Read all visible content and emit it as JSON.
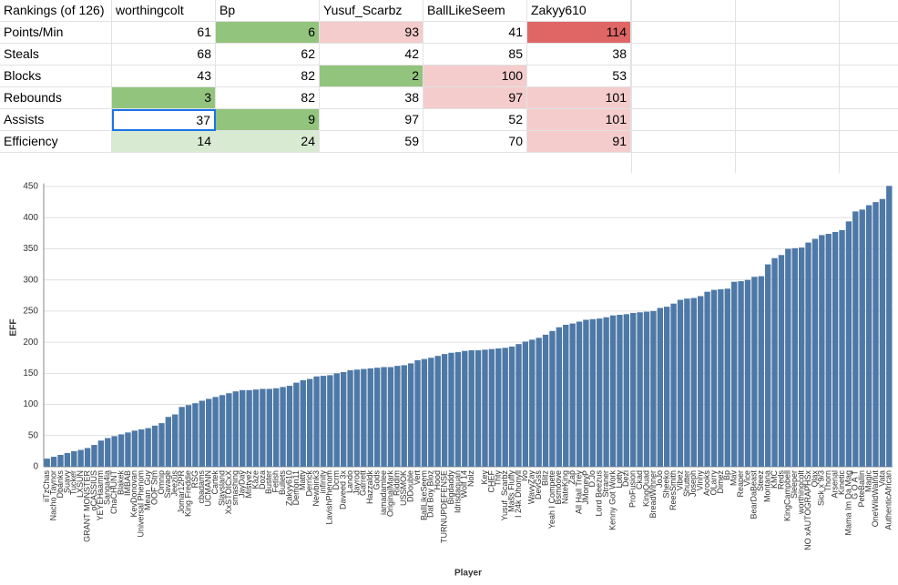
{
  "table": {
    "header": [
      "Rankings (of 126)",
      "worthingcolt",
      "Bp",
      "Yusuf_Scarbz",
      "BallLikeSeem",
      "Zakyy610"
    ],
    "rows": [
      [
        "Points/Min",
        61,
        6,
        93,
        41,
        114
      ],
      [
        "Steals",
        68,
        62,
        42,
        85,
        38
      ],
      [
        "Blocks",
        43,
        82,
        2,
        100,
        53
      ],
      [
        "Rebounds",
        3,
        82,
        38,
        97,
        101
      ],
      [
        "Assists",
        37,
        9,
        97,
        52,
        101
      ],
      [
        "Efficiency",
        14,
        24,
        59,
        70,
        91
      ]
    ]
  },
  "chart_data": {
    "type": "bar",
    "y_label": "EFF",
    "x_label": "Player",
    "color": "#4e79a7",
    "grid": true,
    "ylim": [
      0,
      455
    ],
    "yticks": [
      0,
      50,
      100,
      150,
      200,
      250,
      300,
      350,
      400,
      450
    ],
    "categories": [
      "iiTzChas",
      "Nacho Taynor",
      "Dbanks",
      "Suavy",
      "Tucker",
      "LXSUN",
      "GRANT MONSTER",
      "oCASSIUS",
      "YEYEHaamm",
      "Sanga4ia",
      "ChaCHUNT",
      "Blakek",
      "IMBAB",
      "KevDonovan",
      "Universal Phenom",
      "Mean_Guy",
      "OOF Stm",
      "Omnip",
      "Savage",
      "Jeezus",
      "Jomar12PR",
      "King Freddie",
      "RSG",
      "cbadams",
      "UCMANN",
      "Cartek",
      "Slaysland",
      "XxSTOICxX",
      "smashing",
      "JayDay",
      "Mistyez",
      "Kaze",
      "Doza",
      "Buster",
      "Fetish",
      "Bullets",
      "Zakyy610",
      "Demon11",
      "Matty",
      "Derrick",
      "Newbink3",
      "infinity",
      "LavishPhenom",
      "Dcrm",
      "Daveed 3x",
      "Lando",
      "Jayrod",
      "Garrett",
      "Hazzaldk",
      "Gods",
      "iamadamlee",
      "OriginalMark",
      "Riddim",
      "USSMOK",
      "DDouble",
      "Vert",
      "BallLikeSeem",
      "Dat Boy Bloz",
      "Hood",
      "TURNUPDEFENSE",
      "Bigdaddy",
      "Idrisdaquan",
      "Wolf 14",
      "Nolz",
      null,
      "Key",
      "CHEF",
      "Thty",
      "Yusuf_Scarbz",
      "Mass Fluffy",
      "I 24k Dhonyll",
      "Ivo",
      "WavyZay",
      "DevGss",
      "Blitz",
      "Yeah I Compete",
      "Bsmoove",
      "NateKing",
      "Zap",
      "All Hail Trey",
      "JMoneyP",
      "D.Jo",
      "Lord Beezus",
      "Straner",
      "Kenny Got Work",
      "Lotty",
      "Dezi",
      "ProFusion",
      "Ckad",
      "KingQuad",
      "BreadWinner",
      "JoJo",
      "Sheeko",
      "ReesSmith",
      "Vibez",
      "Shutter",
      "Joseph",
      "Vinny",
      "Arooks",
      "OLarry",
      "Dimez",
      "Bp",
      "Mav",
      "Reaper",
      "Vice",
      "BearDaBeast",
      "Steez",
      "Montana",
      "KMC",
      "Reds",
      "KingCampbell",
      "Sleeper",
      "worthingcolt",
      "NO xAUTOGRAPHSx",
      "Qlax",
      "Sick x 9/3",
      "Thorn",
      "Arsenal",
      "Kinetic",
      "Mama Im Da Mag",
      "G O A T",
      "PeteBallin",
      "Magic",
      "OneWildWalnut",
      "Vata",
      "AuthenticAfrican"
    ],
    "values": [
      13,
      16,
      19,
      22,
      25,
      27,
      30,
      35,
      42,
      46,
      49,
      52,
      55,
      58,
      60,
      62,
      66,
      70,
      80,
      84,
      96,
      99,
      102,
      106,
      109,
      112,
      115,
      118,
      121,
      123,
      123,
      124,
      125,
      125,
      126,
      128,
      130,
      135,
      139,
      141,
      145,
      146,
      147,
      150,
      152,
      155,
      156,
      157,
      158,
      159,
      160,
      160,
      162,
      163,
      166,
      171,
      173,
      175,
      178,
      181,
      183,
      184,
      186,
      187,
      187,
      188,
      189,
      190,
      191,
      193,
      197,
      201,
      204,
      207,
      212,
      218,
      224,
      228,
      230,
      233,
      236,
      237,
      238,
      240,
      243,
      244,
      245,
      247,
      248,
      249,
      250,
      255,
      257,
      262,
      268,
      270,
      271,
      274,
      281,
      284,
      285,
      286,
      297,
      298,
      300,
      305,
      306,
      325,
      335,
      340,
      350,
      351,
      352,
      360,
      366,
      372,
      374,
      377,
      380,
      394,
      410,
      413,
      420,
      425,
      430,
      451
    ]
  }
}
